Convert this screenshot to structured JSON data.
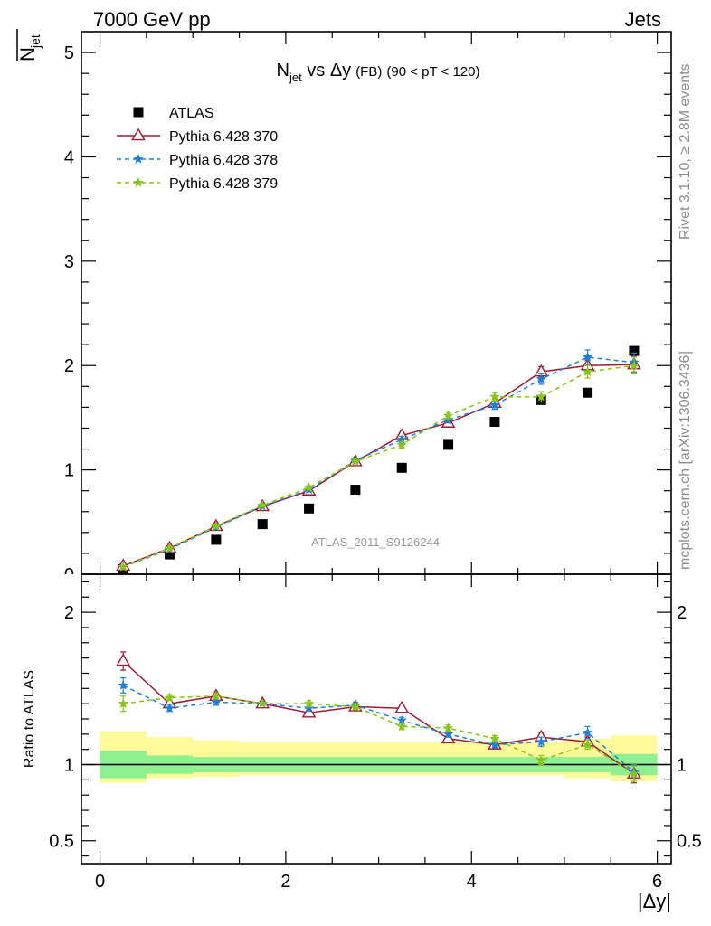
{
  "header": {
    "energy": "7000 GeV pp",
    "category": "Jets",
    "watermark": "ATLAS_2011_S9126244",
    "rivet": "Rivet 3.1.10, ≥ 2.8M events",
    "site": "mcplots.cern.ch [arXiv:1306.3436]"
  },
  "chart_data": [
    {
      "type": "scatter",
      "panel": "main",
      "title": "N_jet vs Δy (FB) (90 < pT < 120)",
      "title_parts": {
        "n": "N",
        "sub": "jet",
        "vs": " vs Δy",
        "fb": "(FB)",
        "cut": "(90 < pT < 120)"
      },
      "ylabel": "N_jet (mean)",
      "xlim": [
        -0.2,
        6.15
      ],
      "ylim": [
        0,
        5.2
      ],
      "yticks": [
        "1",
        "2",
        "3",
        "4",
        "5"
      ],
      "yticks_partial": "0",
      "legend_position": "top-left",
      "x": [
        0.25,
        0.75,
        1.25,
        1.75,
        2.25,
        2.75,
        3.25,
        3.75,
        4.25,
        4.75,
        5.25,
        5.75
      ],
      "series": [
        {
          "name": "ATLAS",
          "color": "#000000",
          "marker": "square",
          "values": [
            0.05,
            0.19,
            0.33,
            0.48,
            0.63,
            0.81,
            1.02,
            1.24,
            1.46,
            1.67,
            1.74,
            2.14
          ]
        },
        {
          "name": "Pythia 6.428 370",
          "color": "#9b1c31",
          "marker": "open-triangle",
          "dash": "solid",
          "values": [
            0.08,
            0.25,
            0.46,
            0.65,
            0.8,
            1.08,
            1.33,
            1.45,
            1.64,
            1.94,
            2.0,
            2.01
          ],
          "err": [
            0.01,
            0.01,
            0.01,
            0.01,
            0.02,
            0.02,
            0.03,
            0.03,
            0.04,
            0.05,
            0.06,
            0.08
          ]
        },
        {
          "name": "Pythia 6.428 378",
          "color": "#1e7fd8",
          "marker": "star",
          "dash": "dashed",
          "values": [
            0.07,
            0.24,
            0.45,
            0.65,
            0.81,
            1.09,
            1.29,
            1.48,
            1.62,
            1.87,
            2.08,
            2.03
          ],
          "err": [
            0.01,
            0.01,
            0.01,
            0.01,
            0.02,
            0.02,
            0.03,
            0.03,
            0.04,
            0.05,
            0.07,
            0.09
          ]
        },
        {
          "name": "Pythia 6.428 379",
          "color": "#88c417",
          "marker": "star",
          "dash": "dashed",
          "values": [
            0.07,
            0.25,
            0.46,
            0.66,
            0.83,
            1.08,
            1.24,
            1.52,
            1.7,
            1.7,
            1.94,
            2.0
          ],
          "err": [
            0.01,
            0.01,
            0.01,
            0.01,
            0.02,
            0.02,
            0.03,
            0.03,
            0.04,
            0.05,
            0.06,
            0.08
          ]
        }
      ]
    },
    {
      "type": "line",
      "panel": "ratio",
      "ylabel": "Ratio to ATLAS",
      "xlabel": "|Δy|",
      "xlim": [
        -0.2,
        6.15
      ],
      "ylim": [
        0.35,
        2.25
      ],
      "yticks": [
        "0.5",
        "1",
        "2"
      ],
      "xticks": [
        "0",
        "2",
        "4",
        "6"
      ],
      "reference": 1.0,
      "band_stat_inner": [
        {
          "x0": 0,
          "x1": 0.5,
          "lo": 0.91,
          "hi": 1.09
        },
        {
          "x0": 0.5,
          "x1": 1.0,
          "lo": 0.94,
          "hi": 1.06
        },
        {
          "x0": 1.0,
          "x1": 5.5,
          "lo": 0.95,
          "hi": 1.05
        },
        {
          "x0": 5.5,
          "x1": 6.0,
          "lo": 0.93,
          "hi": 1.07
        }
      ],
      "band_total_outer": [
        {
          "x0": 0,
          "x1": 0.5,
          "lo": 0.88,
          "hi": 1.22
        },
        {
          "x0": 0.5,
          "x1": 1.0,
          "lo": 0.91,
          "hi": 1.18
        },
        {
          "x0": 1.0,
          "x1": 1.5,
          "lo": 0.92,
          "hi": 1.16
        },
        {
          "x0": 1.5,
          "x1": 5.0,
          "lo": 0.93,
          "hi": 1.15
        },
        {
          "x0": 5.0,
          "x1": 5.5,
          "lo": 0.91,
          "hi": 1.17
        },
        {
          "x0": 5.5,
          "x1": 6.0,
          "lo": 0.89,
          "hi": 1.19
        }
      ],
      "x": [
        0.25,
        0.75,
        1.25,
        1.75,
        2.25,
        2.75,
        3.25,
        3.75,
        4.25,
        4.75,
        5.25,
        5.75
      ],
      "series": [
        {
          "name": "Pythia 6.428 370",
          "color": "#9b1c31",
          "marker": "open-triangle",
          "dash": "solid",
          "values": [
            1.68,
            1.4,
            1.45,
            1.4,
            1.34,
            1.38,
            1.37,
            1.17,
            1.13,
            1.18,
            1.15,
            0.94
          ],
          "err": [
            0.06,
            0.02,
            0.02,
            0.01,
            0.02,
            0.02,
            0.02,
            0.02,
            0.02,
            0.03,
            0.03,
            0.06
          ]
        },
        {
          "name": "Pythia 6.428 378",
          "color": "#1e7fd8",
          "marker": "star",
          "dash": "dashed",
          "values": [
            1.52,
            1.37,
            1.41,
            1.4,
            1.37,
            1.39,
            1.29,
            1.2,
            1.13,
            1.15,
            1.21,
            0.95
          ],
          "err": [
            0.05,
            0.02,
            0.02,
            0.01,
            0.02,
            0.02,
            0.02,
            0.02,
            0.02,
            0.03,
            0.04,
            0.05
          ]
        },
        {
          "name": "Pythia 6.428 379",
          "color": "#88c417",
          "marker": "star",
          "dash": "dashed",
          "values": [
            1.4,
            1.44,
            1.45,
            1.4,
            1.4,
            1.38,
            1.25,
            1.24,
            1.17,
            1.03,
            1.13,
            0.94
          ],
          "err": [
            0.05,
            0.02,
            0.02,
            0.01,
            0.02,
            0.02,
            0.02,
            0.02,
            0.02,
            0.03,
            0.03,
            0.05
          ]
        }
      ]
    }
  ]
}
